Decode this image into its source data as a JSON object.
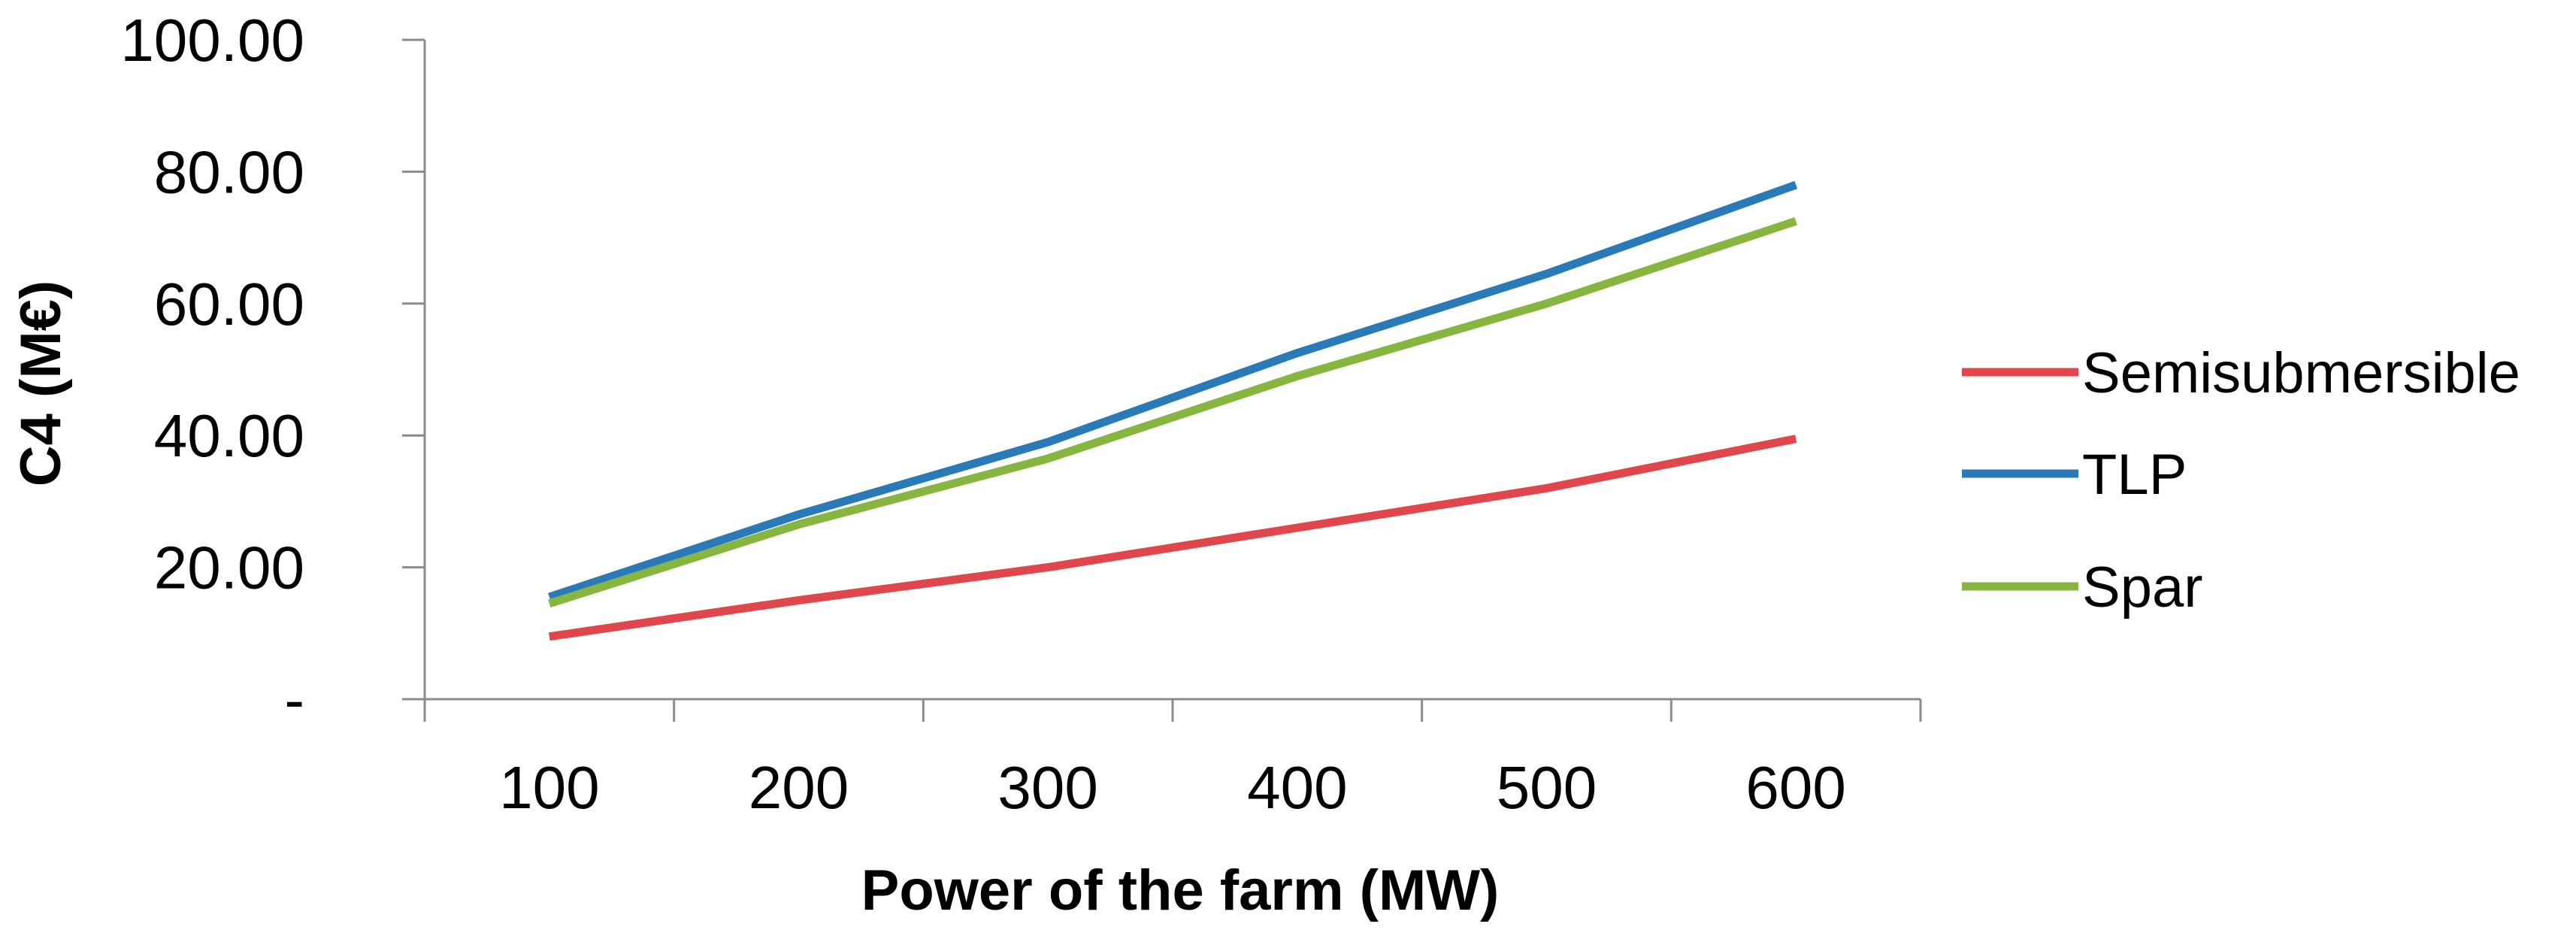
{
  "chart_data": {
    "type": "line",
    "title": "",
    "xlabel": "Power of the farm (MW)",
    "ylabel": "C4 (M€)",
    "categories": [
      "100",
      "200",
      "300",
      "400",
      "500",
      "600"
    ],
    "ylim": [
      0,
      100
    ],
    "yticks": [
      0,
      20,
      40,
      60,
      80,
      100
    ],
    "ytick_labels": [
      "-",
      "20.00",
      "40.00",
      "60.00",
      "80.00",
      "100.00"
    ],
    "grid": false,
    "legend_position": "right",
    "series": [
      {
        "name": "Semisubmersible",
        "color": "#E0474C",
        "values": [
          9.5,
          15.0,
          20.0,
          26.0,
          32.0,
          39.5
        ]
      },
      {
        "name": "TLP",
        "color": "#2A7AB8",
        "values": [
          15.5,
          28.0,
          39.0,
          52.5,
          64.5,
          78.0
        ]
      },
      {
        "name": "Spar",
        "color": "#86B640",
        "values": [
          14.5,
          26.5,
          36.5,
          49.0,
          60.0,
          72.5
        ]
      }
    ]
  }
}
